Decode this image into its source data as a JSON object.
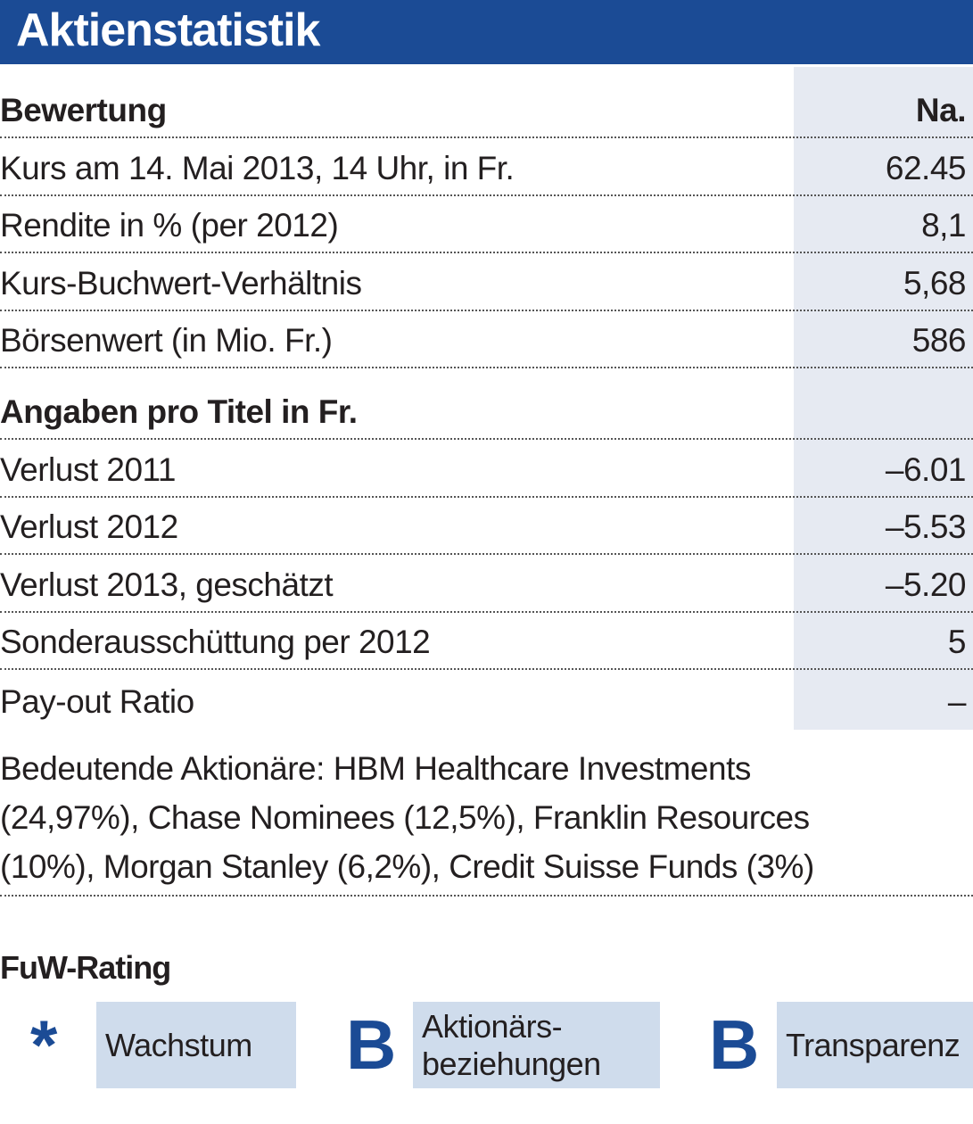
{
  "title": "Aktienstatistik",
  "sections": [
    {
      "heading": "Bewertung",
      "column": "Na.",
      "rows": [
        {
          "label": "Kurs am 14. Mai 2013, 14 Uhr, in Fr.",
          "value": "62.45"
        },
        {
          "label": "Rendite in % (per 2012)",
          "value": "8,1"
        },
        {
          "label": "Kurs-Buchwert-Verhältnis",
          "value": "5,68"
        },
        {
          "label": "Börsenwert (in Mio. Fr.)",
          "value": "586"
        }
      ]
    },
    {
      "heading": "Angaben pro Titel in Fr.",
      "rows": [
        {
          "label": "Verlust 2011",
          "value": "–6.01"
        },
        {
          "label": "Verlust 2012",
          "value": "–5.53"
        },
        {
          "label": "Verlust 2013, geschätzt",
          "value": "–5.20"
        },
        {
          "label": "Sonderausschüttung per 2012",
          "value": "5"
        },
        {
          "label": "Pay-out Ratio",
          "value": "–"
        }
      ]
    }
  ],
  "shareholders_lines": [
    "Bedeutende Aktionäre: HBM Healthcare Investments",
    "(24,97%), Chase Nominees (12,5%), Franklin Resources",
    "(10%), Morgan Stanley (6,2%), Credit Suisse Funds (3%)"
  ],
  "rating": {
    "title": "FuW-Rating",
    "items": [
      {
        "grade": "*",
        "label": "Wachstum"
      },
      {
        "grade": "B",
        "label": "Aktionärs-\nbeziehungen"
      },
      {
        "grade": "B",
        "label": "Transparenz"
      }
    ]
  }
}
